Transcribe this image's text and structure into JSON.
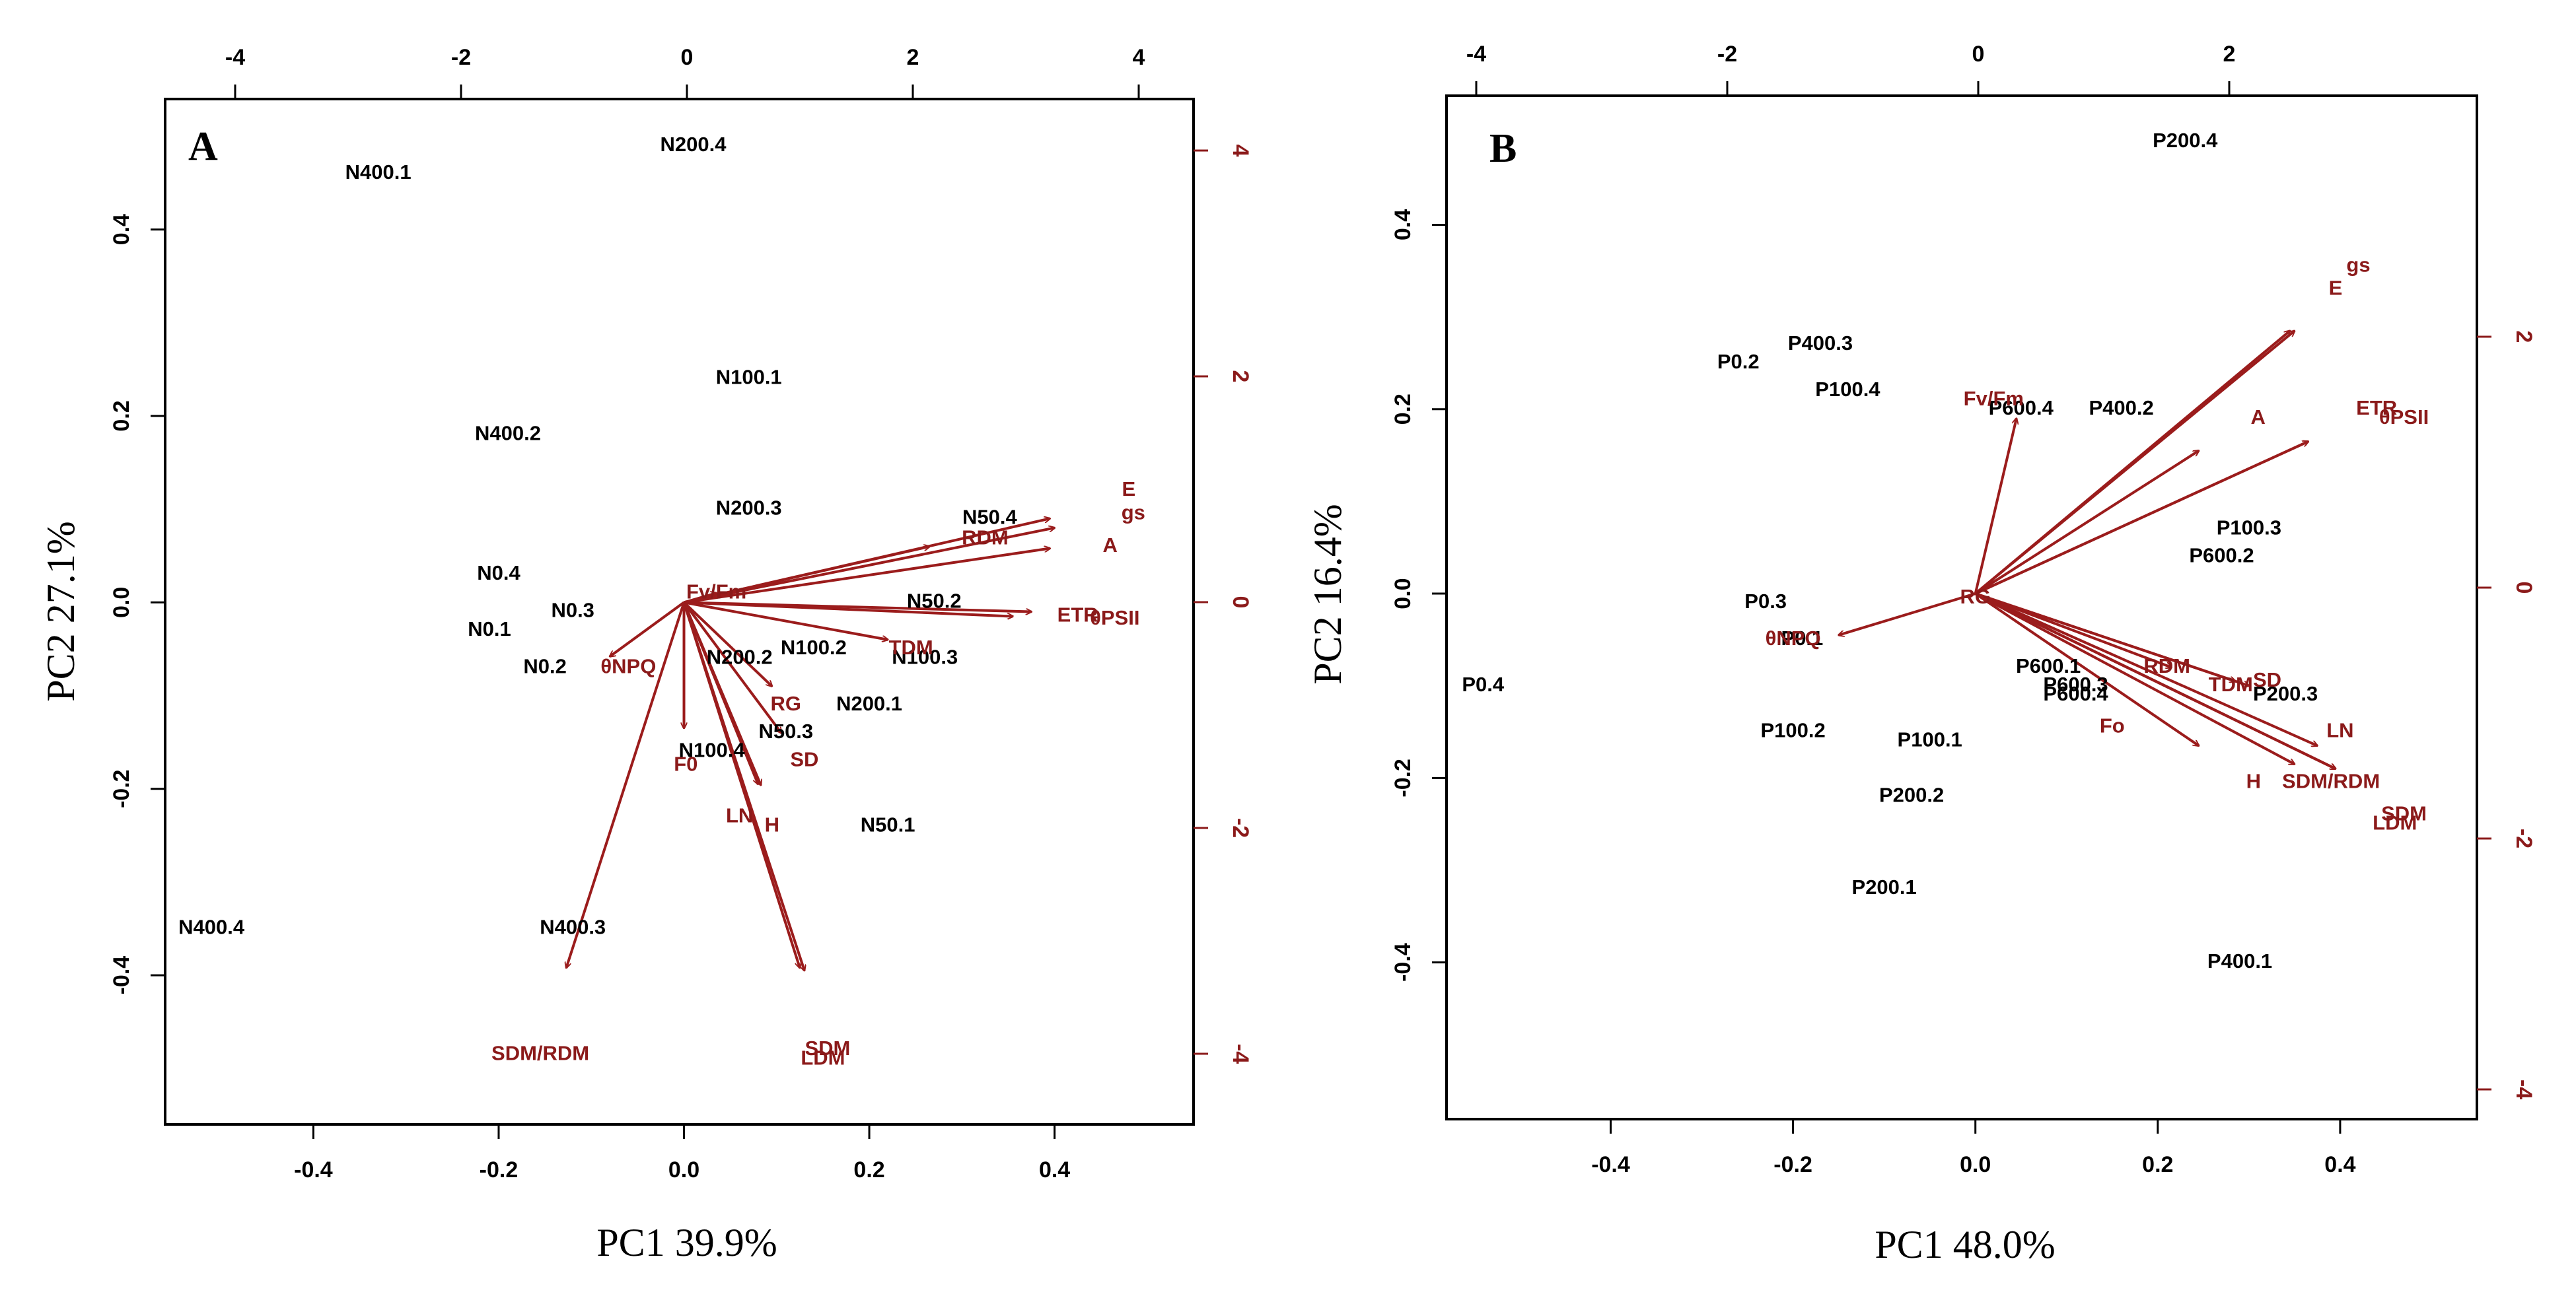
{
  "chart_data": [
    {
      "type": "scatter",
      "subtype": "biplot",
      "panel": "A",
      "xlabel": "PC1  39.9%",
      "ylabel": "PC2  27.1%",
      "xlim": [
        -0.56,
        0.55
      ],
      "ylim": [
        -0.56,
        0.54
      ],
      "xticks": [
        -0.4,
        -0.2,
        0.0,
        0.2,
        0.4
      ],
      "xtick_labels": [
        "-0.4",
        "-0.2",
        "0.0",
        "0.2",
        "0.4"
      ],
      "yticks": [
        -0.4,
        -0.2,
        0.0,
        0.2,
        0.4
      ],
      "ytick_labels": [
        "-0.4",
        "-0.2",
        "0.0",
        "0.2",
        "0.4"
      ],
      "top_ticks": [
        -4,
        -2,
        0,
        2,
        4
      ],
      "top_tick_labels": [
        "-4",
        "-2",
        "0",
        "2",
        "4"
      ],
      "right_ticks": [
        -4,
        -2,
        0,
        2,
        4
      ],
      "right_tick_labels": [
        "-4",
        "-2",
        "0",
        "2",
        "4"
      ],
      "observations": [
        {
          "label": "N400.1",
          "x": -0.33,
          "y": 0.46
        },
        {
          "label": "N200.4",
          "x": 0.01,
          "y": 0.49
        },
        {
          "label": "N100.1",
          "x": 0.07,
          "y": 0.24
        },
        {
          "label": "N400.2",
          "x": -0.19,
          "y": 0.18
        },
        {
          "label": "N200.3",
          "x": 0.07,
          "y": 0.1
        },
        {
          "label": "N50.4",
          "x": 0.33,
          "y": 0.09
        },
        {
          "label": "N0.4",
          "x": -0.2,
          "y": 0.03
        },
        {
          "label": "N0.3",
          "x": -0.12,
          "y": -0.01
        },
        {
          "label": "N0.1",
          "x": -0.21,
          "y": -0.03
        },
        {
          "label": "N50.2",
          "x": 0.27,
          "y": 0.0
        },
        {
          "label": "N100.2",
          "x": 0.14,
          "y": -0.05
        },
        {
          "label": "N100.3",
          "x": 0.26,
          "y": -0.06
        },
        {
          "label": "N200.2",
          "x": 0.06,
          "y": -0.06
        },
        {
          "label": "N0.2",
          "x": -0.15,
          "y": -0.07
        },
        {
          "label": "N200.1",
          "x": 0.2,
          "y": -0.11
        },
        {
          "label": "N50.3",
          "x": 0.11,
          "y": -0.14
        },
        {
          "label": "N100.4",
          "x": 0.03,
          "y": -0.16
        },
        {
          "label": "N50.1",
          "x": 0.22,
          "y": -0.24
        },
        {
          "label": "N400.3",
          "x": -0.12,
          "y": -0.35
        },
        {
          "label": "N400.4",
          "x": -0.51,
          "y": -0.35
        }
      ],
      "variables": [
        {
          "label": "SDM/RDM",
          "dx": -0.127,
          "dy": -0.392,
          "lx": -0.155,
          "ly": -0.485
        },
        {
          "label": "SDM",
          "dx": 0.13,
          "dy": -0.395,
          "lx": 0.155,
          "ly": -0.48
        },
        {
          "label": "LDM",
          "dx": 0.125,
          "dy": -0.392,
          "lx": 0.15,
          "ly": -0.49
        },
        {
          "label": "LN",
          "dx": 0.08,
          "dy": -0.195,
          "lx": 0.06,
          "ly": -0.23
        },
        {
          "label": "H",
          "dx": 0.083,
          "dy": -0.196,
          "lx": 0.095,
          "ly": -0.24
        },
        {
          "label": "F0",
          "dx": 0.0,
          "dy": -0.135,
          "lx": 0.002,
          "ly": -0.175
        },
        {
          "label": "SD",
          "dx": 0.105,
          "dy": -0.14,
          "lx": 0.13,
          "ly": -0.17
        },
        {
          "label": "RG",
          "dx": 0.095,
          "dy": -0.09,
          "lx": 0.11,
          "ly": -0.11
        },
        {
          "label": "θNPQ",
          "dx": -0.08,
          "dy": -0.058,
          "lx": -0.06,
          "ly": -0.07
        },
        {
          "label": "TDM",
          "dx": 0.22,
          "dy": -0.04,
          "lx": 0.245,
          "ly": -0.05
        },
        {
          "label": "ETR",
          "dx": 0.355,
          "dy": -0.015,
          "lx": 0.425,
          "ly": -0.015
        },
        {
          "label": "θPSII",
          "dx": 0.375,
          "dy": -0.01,
          "lx": 0.465,
          "ly": -0.018
        },
        {
          "label": "RDM",
          "dx": 0.265,
          "dy": 0.06,
          "lx": 0.325,
          "ly": 0.068
        },
        {
          "label": "A",
          "dx": 0.395,
          "dy": 0.058,
          "lx": 0.46,
          "ly": 0.06
        },
        {
          "label": "E",
          "dx": 0.395,
          "dy": 0.09,
          "lx": 0.48,
          "ly": 0.12
        },
        {
          "label": "gs",
          "dx": 0.4,
          "dy": 0.08,
          "lx": 0.485,
          "ly": 0.095
        },
        {
          "label": "Fv/Fm",
          "dx": 0.035,
          "dy": 0.01,
          "lx": 0.035,
          "ly": 0.01
        }
      ]
    },
    {
      "type": "scatter",
      "subtype": "biplot",
      "panel": "B",
      "xlabel": "PC1  48.0%",
      "ylabel": "PC2  16.4%",
      "xlim": [
        -0.58,
        0.55
      ],
      "ylim": [
        -0.57,
        0.54
      ],
      "xticks": [
        -0.4,
        -0.2,
        0.0,
        0.2,
        0.4
      ],
      "xtick_labels": [
        "-0.4",
        "-0.2",
        "0.0",
        "0.2",
        "0.4"
      ],
      "yticks": [
        -0.4,
        -0.2,
        0.0,
        0.2,
        0.4
      ],
      "ytick_labels": [
        "-0.4",
        "-0.2",
        "0.0",
        "0.2",
        "0.4"
      ],
      "top_ticks": [
        -4,
        -2,
        0,
        2
      ],
      "top_tick_labels": [
        "-4",
        "-2",
        "0",
        "2"
      ],
      "right_ticks": [
        -4,
        -2,
        0,
        2
      ],
      "right_tick_labels": [
        "-4",
        "-2",
        "0",
        "2"
      ],
      "observations": [
        {
          "label": "P200.4",
          "x": 0.23,
          "y": 0.49
        },
        {
          "label": "P400.3",
          "x": -0.17,
          "y": 0.27
        },
        {
          "label": "P0.2",
          "x": -0.26,
          "y": 0.25
        },
        {
          "label": "P100.4",
          "x": -0.14,
          "y": 0.22
        },
        {
          "label": "P600.4",
          "x": 0.05,
          "y": 0.2
        },
        {
          "label": "P400.2",
          "x": 0.16,
          "y": 0.2
        },
        {
          "label": "P100.3",
          "x": 0.3,
          "y": 0.07
        },
        {
          "label": "P600.2",
          "x": 0.27,
          "y": 0.04
        },
        {
          "label": "P0.3",
          "x": -0.23,
          "y": -0.01
        },
        {
          "label": "P0.1",
          "x": -0.19,
          "y": -0.05
        },
        {
          "label": "P0.4",
          "x": -0.54,
          "y": -0.1
        },
        {
          "label": "P600.1",
          "x": 0.08,
          "y": -0.08
        },
        {
          "label": "P600.3",
          "x": 0.11,
          "y": -0.1
        },
        {
          "label": "P600.4",
          "x": 0.11,
          "y": -0.11
        },
        {
          "label": "P200.3",
          "x": 0.34,
          "y": -0.11
        },
        {
          "label": "P100.2",
          "x": -0.2,
          "y": -0.15
        },
        {
          "label": "P100.1",
          "x": -0.05,
          "y": -0.16
        },
        {
          "label": "P200.2",
          "x": -0.07,
          "y": -0.22
        },
        {
          "label": "P200.1",
          "x": -0.1,
          "y": -0.32
        },
        {
          "label": "P400.1",
          "x": 0.29,
          "y": -0.4
        }
      ],
      "variables": [
        {
          "label": "E",
          "dx": 0.345,
          "dy": 0.285,
          "lx": 0.395,
          "ly": 0.33
        },
        {
          "label": "gs",
          "dx": 0.35,
          "dy": 0.285,
          "lx": 0.42,
          "ly": 0.355
        },
        {
          "label": "A",
          "dx": 0.245,
          "dy": 0.155,
          "lx": 0.31,
          "ly": 0.19
        },
        {
          "label": "ETR",
          "dx": 0.365,
          "dy": 0.165,
          "lx": 0.44,
          "ly": 0.2
        },
        {
          "label": "θPSII",
          "dx": 0.365,
          "dy": 0.165,
          "lx": 0.47,
          "ly": 0.19
        },
        {
          "label": "Fv/Fm",
          "dx": 0.045,
          "dy": 0.19,
          "lx": 0.02,
          "ly": 0.21
        },
        {
          "label": "RG",
          "dx": 0.0,
          "dy": 0.0,
          "lx": 0.0,
          "ly": -0.005
        },
        {
          "label": "θNPQ",
          "dx": -0.15,
          "dy": -0.045,
          "lx": -0.2,
          "ly": -0.05
        },
        {
          "label": "RDM",
          "dx": 0.215,
          "dy": -0.08,
          "lx": 0.21,
          "ly": -0.08
        },
        {
          "label": "TDM",
          "dx": 0.285,
          "dy": -0.095,
          "lx": 0.28,
          "ly": -0.1
        },
        {
          "label": "SD",
          "dx": 0.3,
          "dy": -0.1,
          "lx": 0.32,
          "ly": -0.095
        },
        {
          "label": "Fo",
          "dx": 0.245,
          "dy": -0.165,
          "lx": 0.15,
          "ly": -0.145
        },
        {
          "label": "LN",
          "dx": 0.375,
          "dy": -0.165,
          "lx": 0.4,
          "ly": -0.15
        },
        {
          "label": "H",
          "dx": 0.35,
          "dy": -0.185,
          "lx": 0.305,
          "ly": -0.205
        },
        {
          "label": "SDM/RDM",
          "dx": 0.395,
          "dy": -0.19,
          "lx": 0.39,
          "ly": -0.205
        },
        {
          "label": "SDM",
          "dx": 0.395,
          "dy": -0.19,
          "lx": 0.47,
          "ly": -0.24
        },
        {
          "label": "LDM",
          "dx": 0.395,
          "dy": -0.19,
          "lx": 0.46,
          "ly": -0.25
        }
      ]
    }
  ]
}
